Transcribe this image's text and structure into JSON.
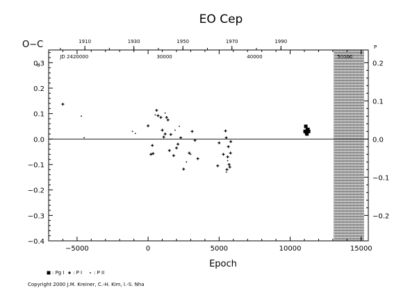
{
  "chart_data": {
    "type": "scatter",
    "title": "EO  Cep",
    "xlabel": "Epoch",
    "ylabel": "O−C",
    "ylabel_unit": "d",
    "right_label_unit": "P",
    "xlim": [
      -7000,
      15500
    ],
    "ylim": [
      -0.4,
      0.35
    ],
    "x_ticks": [
      {
        "v": -5000,
        "label": "−5000"
      },
      {
        "v": 0,
        "label": "0"
      },
      {
        "v": 5000,
        "label": "5000"
      },
      {
        "v": 10000,
        "label": "10000"
      },
      {
        "v": 15000,
        "label": "15000"
      }
    ],
    "y_ticks": [
      {
        "v": -0.4,
        "label": "−0.4"
      },
      {
        "v": -0.3,
        "label": "−0.3"
      },
      {
        "v": -0.2,
        "label": "−0.2"
      },
      {
        "v": -0.1,
        "label": "−0.1"
      },
      {
        "v": 0.0,
        "label": "0.0"
      },
      {
        "v": 0.1,
        "label": "0.1"
      },
      {
        "v": 0.2,
        "label": "0.2"
      },
      {
        "v": 0.3,
        "label": "0.3"
      }
    ],
    "right_ticks": [
      {
        "v": -0.2,
        "label": "−0.2"
      },
      {
        "v": -0.1,
        "label": "−0.1"
      },
      {
        "v": 0.0,
        "label": "0.0"
      },
      {
        "v": 0.1,
        "label": "0.1"
      },
      {
        "v": 0.2,
        "label": "0.2"
      }
    ],
    "right_scale": 0.6667,
    "top_year_ticks": [
      {
        "v": -4450,
        "label": "1910"
      },
      {
        "v": -1000,
        "label": "1930"
      },
      {
        "v": 2450,
        "label": "1950"
      },
      {
        "v": 5900,
        "label": "1970"
      },
      {
        "v": 9350,
        "label": "1990"
      }
    ],
    "top_jd_ticks": [
      {
        "v": -5200,
        "label": "JD 2420000"
      },
      {
        "v": 1150,
        "label": "30000"
      },
      {
        "v": 7500,
        "label": "40000"
      },
      {
        "v": 13850,
        "label": "50000"
      }
    ],
    "hatched_x_range": [
      13100,
      15200
    ],
    "zero_line": true,
    "grid": false,
    "legend_position": "bottom-left",
    "series": [
      {
        "name": "Pg I",
        "symbol": "square",
        "points": [
          [
            11100,
            0.05
          ],
          [
            11200,
            0.035
          ],
          [
            11050,
            0.03
          ],
          [
            11150,
            0.025
          ],
          [
            11300,
            0.03
          ],
          [
            11250,
            0.038
          ],
          [
            11180,
            0.02
          ]
        ]
      },
      {
        "name": "P I",
        "symbol": "plus",
        "points": [
          [
            -6000,
            0.137
          ],
          [
            0,
            0.052
          ],
          [
            200,
            -0.06
          ],
          [
            350,
            -0.057
          ],
          [
            300,
            -0.025
          ],
          [
            600,
            0.113
          ],
          [
            700,
            0.092
          ],
          [
            900,
            0.085
          ],
          [
            1000,
            0.035
          ],
          [
            1100,
            0.008
          ],
          [
            1200,
            0.02
          ],
          [
            1300,
            0.085
          ],
          [
            1400,
            0.075
          ],
          [
            1500,
            -0.045
          ],
          [
            1600,
            0.018
          ],
          [
            1800,
            -0.065
          ],
          [
            2000,
            -0.035
          ],
          [
            2100,
            -0.02
          ],
          [
            2300,
            0.005
          ],
          [
            2500,
            -0.118
          ],
          [
            2900,
            -0.055
          ],
          [
            3100,
            0.03
          ],
          [
            3300,
            -0.005
          ],
          [
            3500,
            -0.077
          ],
          [
            4900,
            -0.105
          ],
          [
            5000,
            -0.015
          ],
          [
            5300,
            -0.06
          ],
          [
            5450,
            0.032
          ],
          [
            5500,
            0.005
          ],
          [
            5550,
            -0.12
          ],
          [
            5600,
            -0.07
          ],
          [
            5650,
            -0.03
          ],
          [
            5700,
            -0.1
          ],
          [
            5750,
            -0.11
          ],
          [
            5800,
            -0.055
          ],
          [
            5820,
            -0.01
          ]
        ]
      },
      {
        "name": "P II",
        "symbol": "dot",
        "points": [
          [
            -4700,
            0.09
          ],
          [
            -4500,
            0.005
          ],
          [
            -1100,
            0.03
          ],
          [
            -900,
            0.022
          ],
          [
            500,
            0.095
          ],
          [
            1200,
            0.102
          ],
          [
            1900,
            0.035
          ],
          [
            2200,
            0.05
          ],
          [
            2700,
            -0.09
          ],
          [
            3000,
            -0.06
          ],
          [
            5500,
            -0.13
          ],
          [
            5600,
            -0.085
          ]
        ]
      }
    ]
  },
  "legend": [
    {
      "symbol": "square",
      "label": ": Pg I"
    },
    {
      "symbol": "plus",
      "label": ": P I"
    },
    {
      "symbol": "dot",
      "label": ": P II"
    }
  ],
  "copyright": "Copyright 2000 J.M. Kreiner, C.-H. Kim, I.-S. Nha"
}
